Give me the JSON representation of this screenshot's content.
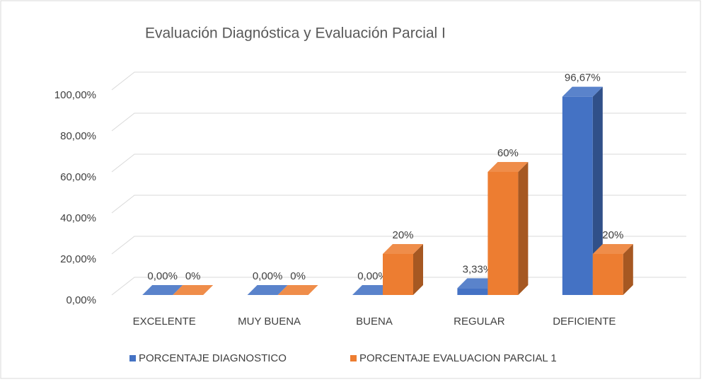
{
  "chart_data": {
    "type": "bar3d",
    "title": "Evaluación Diagnóstica y Evaluación Parcial I",
    "categories": [
      "EXCELENTE",
      "MUY BUENA",
      "BUENA",
      "REGULAR",
      "DEFICIENTE"
    ],
    "series": [
      {
        "name": "PORCENTAJE DIAGNOSTICO",
        "color": "#4472c4",
        "values": [
          0,
          0,
          0,
          3.33,
          96.67
        ],
        "value_labels": [
          "0,00%",
          "0,00%",
          "0,00%",
          "3,33%",
          "96,67%"
        ]
      },
      {
        "name": "PORCENTAJE EVALUACION PARCIAL 1",
        "color": "#ed7d31",
        "values": [
          0,
          0,
          20,
          60,
          20
        ],
        "value_labels": [
          "0%",
          "0%",
          "20%",
          "60%",
          "20%"
        ]
      }
    ],
    "ylim": [
      0,
      100
    ],
    "yticks": [
      {
        "value": 0,
        "label": "0,00%"
      },
      {
        "value": 20,
        "label": "20,00%"
      },
      {
        "value": 40,
        "label": "40,00%"
      },
      {
        "value": 60,
        "label": "60,00%"
      },
      {
        "value": 80,
        "label": "80,00%"
      },
      {
        "value": 100,
        "label": "100,00%"
      }
    ],
    "grid": true,
    "legend": "bottom"
  }
}
